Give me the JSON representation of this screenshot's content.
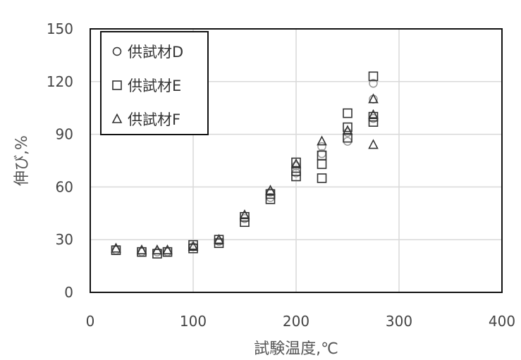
{
  "chart_data": {
    "type": "scatter",
    "title": "",
    "xlabel": "試験温度,℃",
    "ylabel": "伸び,%",
    "xlim": [
      0,
      400
    ],
    "ylim": [
      0,
      150
    ],
    "xticks": [
      "0",
      "100",
      "200",
      "300",
      "400"
    ],
    "yticks": [
      "0",
      "30",
      "60",
      "90",
      "120",
      "150"
    ],
    "grid": true,
    "legend_position": "top-left",
    "series": [
      {
        "name": "供試材D",
        "marker": "circle",
        "color": "#999999",
        "points": [
          [
            25,
            24
          ],
          [
            50,
            23
          ],
          [
            65,
            23
          ],
          [
            75,
            23
          ],
          [
            100,
            26
          ],
          [
            125,
            29
          ],
          [
            150,
            42
          ],
          [
            175,
            54
          ],
          [
            175,
            57
          ],
          [
            200,
            68
          ],
          [
            200,
            72
          ],
          [
            225,
            79
          ],
          [
            225,
            83
          ],
          [
            250,
            86
          ],
          [
            250,
            91
          ],
          [
            275,
            99
          ],
          [
            275,
            110
          ],
          [
            275,
            119
          ]
        ]
      },
      {
        "name": "供試材E",
        "marker": "square",
        "color": "#333333",
        "points": [
          [
            25,
            24
          ],
          [
            50,
            23
          ],
          [
            65,
            22
          ],
          [
            75,
            23
          ],
          [
            100,
            25
          ],
          [
            100,
            27
          ],
          [
            125,
            28
          ],
          [
            125,
            30
          ],
          [
            150,
            40
          ],
          [
            150,
            43
          ],
          [
            175,
            53
          ],
          [
            175,
            56
          ],
          [
            200,
            66
          ],
          [
            200,
            69
          ],
          [
            200,
            74
          ],
          [
            225,
            65
          ],
          [
            225,
            73
          ],
          [
            225,
            78
          ],
          [
            250,
            88
          ],
          [
            250,
            94
          ],
          [
            250,
            102
          ],
          [
            275,
            97
          ],
          [
            275,
            100
          ],
          [
            275,
            123
          ]
        ]
      },
      {
        "name": "供試材F",
        "marker": "triangle",
        "color": "#333333",
        "points": [
          [
            25,
            25
          ],
          [
            50,
            24
          ],
          [
            65,
            24
          ],
          [
            75,
            24
          ],
          [
            100,
            26
          ],
          [
            125,
            30
          ],
          [
            150,
            44
          ],
          [
            175,
            58
          ],
          [
            200,
            73
          ],
          [
            225,
            86
          ],
          [
            250,
            92
          ],
          [
            275,
            84
          ],
          [
            275,
            101
          ],
          [
            275,
            110
          ]
        ]
      }
    ]
  }
}
